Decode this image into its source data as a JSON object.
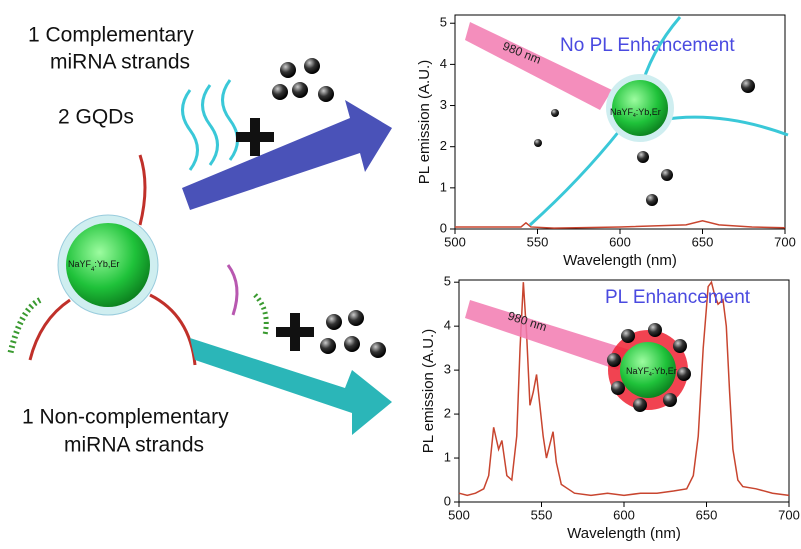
{
  "labels": {
    "top": [
      "1 Complementary",
      "miRNA strands"
    ],
    "gqds": "2 GQDs",
    "bottom": [
      "1 Non-complementary",
      "miRNA strands"
    ],
    "particle": {
      "main": "NaYF",
      "sub": "4",
      "rest": ":Yb,Er"
    }
  },
  "chart_data": [
    {
      "type": "line",
      "xlabel": "Wavelength (nm)",
      "ylabel": "PL emission (A.U.)",
      "annotation": "No PL Enhancement",
      "laser_label": "980 nm",
      "particle_label": {
        "main": "NaYF",
        "sub": "4",
        "rest": ":Yb,Er"
      },
      "xlim": [
        500,
        700
      ],
      "ylim": [
        0,
        5.2
      ],
      "xticks": [
        500,
        550,
        600,
        650,
        700
      ],
      "yticks": [
        0,
        1,
        2,
        3,
        4,
        5
      ],
      "x": [
        500,
        520,
        540,
        543,
        546,
        560,
        600,
        640,
        650,
        660,
        680,
        700
      ],
      "series": [
        {
          "color": "#c8452f",
          "values": [
            0.05,
            0.05,
            0.05,
            0.15,
            0.05,
            0.02,
            0.05,
            0.1,
            0.2,
            0.1,
            0.05,
            0.03
          ]
        }
      ]
    },
    {
      "type": "line",
      "xlabel": "Wavelength (nm)",
      "ylabel": "PL emission (A.U.)",
      "annotation": "PL Enhancement",
      "laser_label": "980 nm",
      "particle_label": {
        "main": "NaYF",
        "sub": "4",
        "rest": ":Yb,Er"
      },
      "xlim": [
        500,
        700
      ],
      "ylim": [
        0,
        5.05
      ],
      "xticks": [
        500,
        550,
        600,
        650,
        700
      ],
      "yticks": [
        0,
        1,
        2,
        3,
        4,
        5
      ],
      "x": [
        500,
        505,
        510,
        515,
        518,
        521,
        524,
        526,
        529,
        532,
        535,
        537,
        539,
        541,
        543,
        545,
        547,
        549,
        551,
        553,
        555,
        557,
        559,
        562,
        566,
        570,
        580,
        590,
        600,
        610,
        620,
        630,
        638,
        642,
        645,
        648,
        651,
        653,
        655,
        657,
        660,
        662,
        664,
        666,
        669,
        672,
        680,
        690,
        700
      ],
      "series": [
        {
          "color": "#c8452f",
          "values": [
            0.2,
            0.15,
            0.2,
            0.3,
            0.6,
            1.7,
            1.2,
            1.4,
            0.6,
            0.5,
            1.5,
            3.5,
            5.0,
            3.8,
            2.2,
            2.5,
            2.9,
            2.2,
            1.5,
            1.0,
            1.3,
            1.6,
            0.9,
            0.4,
            0.3,
            0.2,
            0.15,
            0.2,
            0.15,
            0.2,
            0.2,
            0.25,
            0.3,
            0.6,
            1.5,
            3.5,
            4.9,
            5.0,
            4.7,
            4.5,
            4.6,
            4.0,
            2.5,
            1.2,
            0.5,
            0.35,
            0.3,
            0.2,
            0.15
          ]
        }
      ]
    }
  ]
}
